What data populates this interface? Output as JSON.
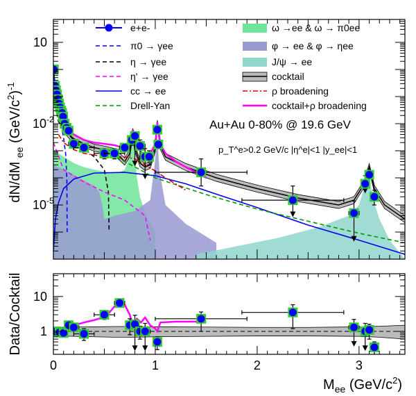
{
  "chart_data": [
    {
      "type": "line",
      "panel": "top",
      "log_y": true,
      "xlim": [
        0,
        3.45
      ],
      "ylim": [
        1e-07,
        70
      ],
      "ylabel": "dN/dM_ee (GeV/c^2)^-1",
      "ytick_labels": [
        {
          "v": 10,
          "text": "10"
        },
        {
          "v": 0.01,
          "text": "10",
          "exp": "-2"
        },
        {
          "v": 1e-05,
          "text": "10",
          "exp": "-5"
        }
      ],
      "annotations": {
        "system": "Au+Au 0-80% @ 19.6 GeV",
        "cuts": "p_T^e>0.2 GeV/c |η^e|<1   |y_ee|<1"
      },
      "legend": {
        "placement": "top",
        "left": [
          {
            "label": "e+e-",
            "style": "data-marker",
            "color": "#0000ff"
          },
          {
            "label": "π0 → γee",
            "style": "dashed",
            "color": "#0000ff"
          },
          {
            "label": "η → γee",
            "style": "dashed",
            "color": "#000000"
          },
          {
            "label": "η' → γee",
            "style": "dashed",
            "color": "#ff00ff"
          },
          {
            "label": "cc → ee",
            "style": "solid",
            "color": "#0000ee"
          },
          {
            "label": "Drell-Yan",
            "style": "dashed",
            "color": "#009900"
          }
        ],
        "right": [
          {
            "label": "ω →ee & ω → π0ee",
            "style": "fill",
            "color": "#6ee49a"
          },
          {
            "label": "φ → ee & φ → ηee",
            "style": "fill",
            "color": "#9a9ad2"
          },
          {
            "label": "J/ψ → ee",
            "style": "fill",
            "color": "#8fd6cc"
          },
          {
            "label": "cocktail",
            "style": "band",
            "color": "#bbbbbb"
          },
          {
            "label": "ρ broadening",
            "style": "dashdot",
            "color": "#dd0000"
          },
          {
            "label": "cocktail+ρ broadening",
            "style": "solid",
            "color": "#ff00ff"
          }
        ]
      },
      "series": [
        {
          "name": "e+e-",
          "kind": "points",
          "x": [
            0.005,
            0.015,
            0.025,
            0.035,
            0.045,
            0.055,
            0.065,
            0.075,
            0.085,
            0.095,
            0.11,
            0.13,
            0.15,
            0.2,
            0.3,
            0.5,
            0.6,
            0.7,
            0.77,
            0.8,
            0.85,
            0.9,
            0.94,
            1.02,
            1.03,
            1.45,
            2.35,
            2.95,
            3.06,
            3.1,
            3.15
          ],
          "y": [
            1.0,
            0.25,
            0.17,
            0.12,
            0.08,
            0.055,
            0.04,
            0.03,
            0.025,
            0.018,
            0.01,
            0.007,
            0.0055,
            0.0018,
            0.0013,
            0.0008,
            0.0008,
            0.0013,
            0.0025,
            0.0035,
            0.0015,
            0.0006,
            0.0006,
            0.006,
            0.0017,
            0.00016,
            1.5e-05,
            5e-06,
            6e-05,
            0.00013,
            2e-05
          ],
          "xerr": [
            0,
            0,
            0,
            0,
            0,
            0,
            0,
            0,
            0,
            0,
            0,
            0,
            0.03,
            0.05,
            0.1,
            0.1,
            0.1,
            0.05,
            0.03,
            0.03,
            0.05,
            0.05,
            0.04,
            0.02,
            0.02,
            0.45,
            0.5,
            0.05,
            0.03,
            0.02,
            0.03
          ],
          "ylo": [
            0.9,
            0.23,
            0.15,
            0.11,
            0.07,
            0.05,
            0.036,
            0.027,
            0.022,
            0.016,
            0.009,
            0.006,
            0.0045,
            0.0015,
            0.0009,
            0.0005,
            0.0005,
            0.0009,
            0.0016,
            0.0003,
            0.0005,
            0.0001,
            0.0003,
            0.005,
            0.0013,
            5e-05,
            4e-06,
            5e-07,
            3e-05,
            0.0001,
            1e-05
          ],
          "yhi": [
            1.1,
            0.27,
            0.19,
            0.13,
            0.09,
            0.06,
            0.044,
            0.033,
            0.028,
            0.02,
            0.011,
            0.008,
            0.0065,
            0.0021,
            0.0018,
            0.0012,
            0.0012,
            0.0018,
            0.0035,
            0.005,
            0.0025,
            0.0012,
            0.001,
            0.007,
            0.0022,
            0.0005,
            5e-05,
            1.4e-05,
            0.00012,
            0.00017,
            3.5e-05
          ],
          "upper_limit": [
            false,
            false,
            false,
            false,
            false,
            false,
            false,
            false,
            false,
            false,
            false,
            false,
            false,
            false,
            false,
            false,
            false,
            false,
            false,
            true,
            false,
            true,
            false,
            false,
            false,
            false,
            true,
            true,
            true,
            false,
            false
          ],
          "color": "#0000ff",
          "sys_color": "#33cc33"
        },
        {
          "name": "π0 → γee",
          "kind": "line",
          "style": "dashed",
          "color": "#0000ff",
          "x": [
            0.001,
            0.02,
            0.05,
            0.08,
            0.1,
            0.12,
            0.132,
            0.135
          ],
          "y": [
            1.0,
            0.12,
            0.03,
            0.008,
            0.003,
            0.0008,
            0.0001,
            1e-06
          ]
        },
        {
          "name": "η → γee",
          "kind": "line",
          "style": "dashed",
          "color": "#000000",
          "x": [
            0.001,
            0.05,
            0.1,
            0.2,
            0.3,
            0.4,
            0.5,
            0.54,
            0.547
          ],
          "y": [
            0.08,
            0.012,
            0.006,
            0.0025,
            0.0012,
            0.0006,
            0.0002,
            3e-05,
            1e-06
          ]
        },
        {
          "name": "η' → γee",
          "kind": "line",
          "style": "dashed",
          "color": "#ff00ff",
          "x": [
            0.001,
            0.1,
            0.3,
            0.5,
            0.7,
            0.9,
            0.95
          ],
          "y": [
            0.002,
            0.0002,
            7e-05,
            3e-05,
            1.5e-05,
            4e-06,
            5e-07
          ]
        },
        {
          "name": "cc → ee",
          "kind": "line",
          "style": "solid",
          "color": "#0000ee",
          "x": [
            0.0,
            0.02,
            0.05,
            0.1,
            0.2,
            0.4,
            0.7,
            1.0,
            1.3,
            1.6,
            2.0,
            2.5,
            3.0,
            3.45
          ],
          "y": [
            2e-07,
            3e-06,
            1.2e-05,
            4e-05,
            9e-05,
            0.00015,
            0.00016,
            0.00012,
            6e-05,
            2.5e-05,
            8e-06,
            1.8e-06,
            5e-07,
            1.5e-07
          ]
        },
        {
          "name": "Drell-Yan",
          "kind": "line",
          "style": "dashed",
          "color": "#009900",
          "x": [
            0.5,
            1.0,
            1.5,
            2.0,
            2.5,
            3.0,
            3.45
          ],
          "y": [
            0.001,
            0.0001,
            2.4e-05,
            7e-06,
            2.5e-06,
            9e-07,
            4e-07
          ]
        },
        {
          "name": "ω →ee & ω → π0ee",
          "kind": "area",
          "color": "#6ee49a",
          "x": [
            0.0,
            0.01,
            0.05,
            0.1,
            0.2,
            0.3,
            0.4,
            0.5,
            0.6,
            0.65,
            0.7,
            0.75,
            0.78,
            0.79,
            0.82,
            0.85,
            0.9,
            1.0
          ],
          "y": [
            0.001,
            0.001,
            0.0008,
            0.0006,
            0.00035,
            0.00025,
            0.0002,
            0.00017,
            0.00015,
            0.00016,
            0.0002,
            0.0006,
            0.005,
            0.002,
            0.0001,
            2e-05,
            5e-06,
            1e-06
          ]
        },
        {
          "name": "φ → ee & φ → ηee",
          "kind": "area",
          "color": "#9a9ad2",
          "x": [
            0.0,
            0.05,
            0.1,
            0.2,
            0.3,
            0.4,
            0.45,
            0.48,
            0.5,
            0.6,
            0.8,
            0.95,
            1.0,
            1.02,
            1.04,
            1.1,
            1.3,
            1.6
          ],
          "y": [
            0.0003,
            0.00025,
            0.0002,
            0.00013,
            8e-05,
            5e-05,
            3e-05,
            1e-05,
            3e-06,
            4e-06,
            6e-06,
            1.5e-05,
            0.0005,
            0.004,
            0.0002,
            1e-05,
            2e-06,
            4e-07
          ]
        },
        {
          "name": "J/ψ → ee",
          "kind": "area",
          "color": "#8fd6cc",
          "x": [
            1.4,
            1.8,
            2.2,
            2.6,
            2.9,
            3.0,
            3.06,
            3.1,
            3.13,
            3.2,
            3.3,
            3.45
          ],
          "y": [
            1.5e-07,
            3e-07,
            6e-07,
            1.5e-06,
            4e-06,
            1e-05,
            6e-05,
            0.0002,
            2e-05,
            3e-06,
            5e-07,
            1e-07
          ]
        },
        {
          "name": "cocktail",
          "kind": "band",
          "color": "#bbbbbb",
          "x": [
            0.0,
            0.01,
            0.03,
            0.05,
            0.08,
            0.1,
            0.13,
            0.15,
            0.2,
            0.3,
            0.4,
            0.5,
            0.6,
            0.65,
            0.7,
            0.75,
            0.78,
            0.8,
            0.85,
            0.9,
            0.95,
            1.0,
            1.02,
            1.05,
            1.1,
            1.3,
            1.6,
            2.0,
            2.4,
            2.8,
            2.95,
            3.05,
            3.1,
            3.15,
            3.25,
            3.45
          ],
          "y": [
            1.2,
            0.4,
            0.12,
            0.05,
            0.015,
            0.008,
            0.005,
            0.004,
            0.0028,
            0.0018,
            0.0013,
            0.0011,
            0.0009,
            0.0006,
            0.0004,
            0.0008,
            0.005,
            0.0012,
            0.00035,
            0.00025,
            0.0003,
            0.0012,
            0.01,
            0.0015,
            0.0006,
            0.00025,
            0.0001,
            4e-05,
            1.8e-05,
            1e-05,
            1.5e-05,
            6e-05,
            0.00025,
            4e-05,
            1e-05,
            3e-06
          ],
          "rel_err": 0.35
        },
        {
          "name": "ρ broadening",
          "kind": "line",
          "style": "dashdot",
          "color": "#dd0000",
          "x": [
            0.05,
            0.1,
            0.2,
            0.3,
            0.4,
            0.5,
            0.6,
            0.7,
            0.8,
            0.9,
            1.0,
            1.1,
            1.2,
            1.3
          ],
          "y": [
            0.004,
            0.002,
            0.0011,
            0.0008,
            0.0007,
            0.0006,
            0.0006,
            0.0006,
            0.0005,
            0.0003,
            0.00018,
            0.0001,
            6e-05,
            3.5e-05
          ]
        },
        {
          "name": "cocktail+ρ broadening",
          "kind": "line",
          "style": "solid",
          "color": "#ff00ff",
          "x": [
            0.05,
            0.1,
            0.15,
            0.2,
            0.3,
            0.4,
            0.5,
            0.6,
            0.65,
            0.7,
            0.75,
            0.78,
            0.82,
            0.86,
            0.9,
            0.95,
            1.0,
            1.02,
            1.05,
            1.1,
            1.2,
            1.3,
            1.5
          ],
          "y": [
            0.06,
            0.012,
            0.006,
            0.004,
            0.0025,
            0.002,
            0.0018,
            0.0016,
            0.0014,
            0.0012,
            0.0018,
            0.006,
            0.0016,
            0.0009,
            0.0007,
            0.00075,
            0.0018,
            0.011,
            0.0018,
            0.0008,
            0.0004,
            0.00025,
            0.0001
          ]
        }
      ]
    },
    {
      "type": "line",
      "panel": "bottom",
      "log_y": true,
      "xlim": [
        0,
        3.45
      ],
      "ylim": [
        0.22,
        45
      ],
      "xlabel": "M_ee (GeV/c^2)",
      "ylabel": "Data/Cocktail",
      "xticks": [
        0,
        1,
        2,
        3
      ],
      "ytick_labels": [
        {
          "v": 1,
          "text": "1"
        },
        {
          "v": 10,
          "text": "10"
        }
      ],
      "reference_line": 1,
      "series": [
        {
          "name": "ratio",
          "kind": "points",
          "x": [
            0.02,
            0.06,
            0.1,
            0.15,
            0.2,
            0.3,
            0.5,
            0.65,
            0.75,
            0.8,
            0.85,
            0.9,
            1.02,
            1.45,
            2.35,
            2.95,
            3.06,
            3.1,
            3.15
          ],
          "y": [
            1.0,
            0.95,
            0.9,
            1.5,
            1.3,
            0.85,
            3.0,
            6.5,
            1.5,
            1.6,
            1.0,
            1.0,
            0.5,
            2.3,
            3.5,
            1.3,
            1.0,
            1.1,
            0.35
          ],
          "xerr": [
            0.02,
            0.02,
            0.02,
            0.03,
            0.05,
            0.1,
            0.1,
            0.05,
            0.03,
            0.03,
            0.05,
            0.05,
            0.02,
            0.45,
            0.5,
            0.05,
            0.03,
            0.02,
            0.03
          ],
          "ylo": [
            0.9,
            0.85,
            0.75,
            1.2,
            1.1,
            0.55,
            2.2,
            5.0,
            0.8,
            0.3,
            0.6,
            0.3,
            0.3,
            1.0,
            1.2,
            0.4,
            0.3,
            0.6,
            0.2
          ],
          "yhi": [
            1.1,
            1.05,
            1.05,
            1.8,
            1.5,
            1.2,
            3.8,
            8.0,
            2.3,
            2.9,
            1.4,
            1.7,
            0.7,
            3.6,
            5.8,
            2.2,
            1.7,
            1.6,
            0.5
          ],
          "upper_limit": [
            false,
            false,
            false,
            false,
            false,
            false,
            false,
            false,
            false,
            true,
            false,
            true,
            false,
            false,
            false,
            true,
            true,
            false,
            false
          ],
          "color": "#0000ff",
          "sys_color": "#33cc33"
        },
        {
          "name": "cocktail uncertainty band",
          "kind": "band",
          "color": "#bbbbbb",
          "x": [
            0.0,
            0.2,
            0.4,
            0.6,
            0.8,
            1.0,
            1.5,
            2.0,
            2.5,
            3.0,
            3.2,
            3.45
          ],
          "lo": [
            0.75,
            0.72,
            0.7,
            0.68,
            0.68,
            0.7,
            0.72,
            0.74,
            0.74,
            0.72,
            0.68,
            0.6
          ],
          "hi": [
            1.3,
            1.33,
            1.35,
            1.38,
            1.38,
            1.35,
            1.33,
            1.3,
            1.3,
            1.35,
            1.4,
            1.5
          ]
        },
        {
          "name": "cocktail+ρ broadening",
          "kind": "line",
          "style": "solid",
          "color": "#ff00ff",
          "x": [
            0.02,
            0.1,
            0.2,
            0.3,
            0.4,
            0.5,
            0.55,
            0.6,
            0.65,
            0.7,
            0.75,
            0.78,
            0.82,
            0.86,
            0.9,
            0.95,
            1.0,
            1.02,
            1.05,
            1.2,
            1.4,
            1.5
          ],
          "y": [
            1.05,
            1.2,
            1.5,
            1.8,
            2.1,
            2.6,
            3.5,
            5.2,
            6.5,
            5.8,
            3.0,
            1.4,
            2.3,
            1.8,
            2.5,
            1.5,
            1.2,
            1.0,
            1.8,
            1.9,
            1.9,
            1.9
          ]
        }
      ]
    }
  ]
}
